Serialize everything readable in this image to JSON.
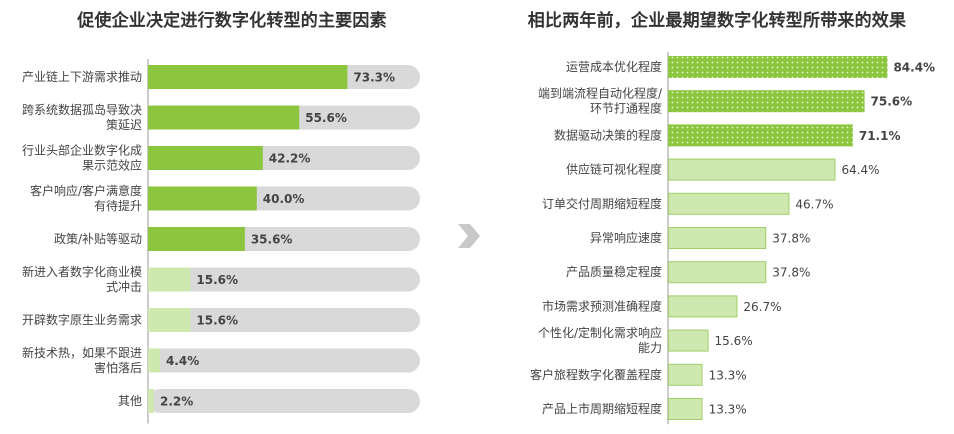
{
  "chart_data": [
    {
      "type": "bar",
      "orientation": "horizontal",
      "title": "促使企业决定进行数字化转型的主要因素",
      "categories": [
        [
          "产业链上下游需求推动"
        ],
        [
          "跨系统数据孤岛导致决",
          "策延迟"
        ],
        [
          "行业头部企业数字化成",
          "果示范效应"
        ],
        [
          "客户响应/客户满意度",
          "有待提升"
        ],
        [
          "政策/补贴等驱动"
        ],
        [
          "新进入者数字化商业模",
          "式冲击"
        ],
        [
          "开辟数字原生业务需求"
        ],
        [
          "新技术热，如果不跟进",
          "害怕落后"
        ],
        [
          "其他"
        ]
      ],
      "values": [
        73.3,
        55.6,
        42.2,
        40.0,
        35.6,
        15.6,
        15.6,
        4.4,
        2.2
      ],
      "value_labels": [
        "73.3%",
        "55.6%",
        "42.2%",
        "40.0%",
        "35.6%",
        "15.6%",
        "15.6%",
        "4.4%",
        "2.2%"
      ],
      "highlight": [
        true,
        true,
        true,
        true,
        true,
        false,
        false,
        false,
        false
      ],
      "xlim": [
        0,
        100
      ]
    },
    {
      "type": "bar",
      "orientation": "horizontal",
      "title": "相比两年前，企业最期望数字化转型所带来的效果",
      "categories": [
        [
          "运营成本优化程度"
        ],
        [
          "端到端流程自动化程度/",
          "环节打通程度"
        ],
        [
          "数据驱动决策的程度"
        ],
        [
          "供应链可视化程度"
        ],
        [
          "订单交付周期缩短程度"
        ],
        [
          "异常响应速度"
        ],
        [
          "产品质量稳定程度"
        ],
        [
          "市场需求预测准确程度"
        ],
        [
          "个性化/定制化需求响应",
          "能力"
        ],
        [
          "客户旅程数字化覆盖程度"
        ],
        [
          "产品上市周期缩短程度"
        ]
      ],
      "values": [
        84.4,
        75.6,
        71.1,
        64.4,
        46.7,
        37.8,
        37.8,
        26.7,
        15.6,
        13.3,
        13.3
      ],
      "value_labels": [
        "84.4%",
        "75.6%",
        "71.1%",
        "64.4%",
        "46.7%",
        "37.8%",
        "37.8%",
        "26.7%",
        "15.6%",
        "13.3%",
        "13.3%"
      ],
      "highlight": [
        true,
        true,
        true,
        false,
        false,
        false,
        false,
        false,
        false,
        false,
        false
      ],
      "xlim": [
        0,
        100
      ]
    }
  ],
  "colors": {
    "strong": "#8cc63f",
    "light": "#cfe8b0",
    "light_border": "#9fce6a",
    "track": "#d9d9d9",
    "dots": "#e8f5d0",
    "arrow": "#c8c8c8"
  }
}
